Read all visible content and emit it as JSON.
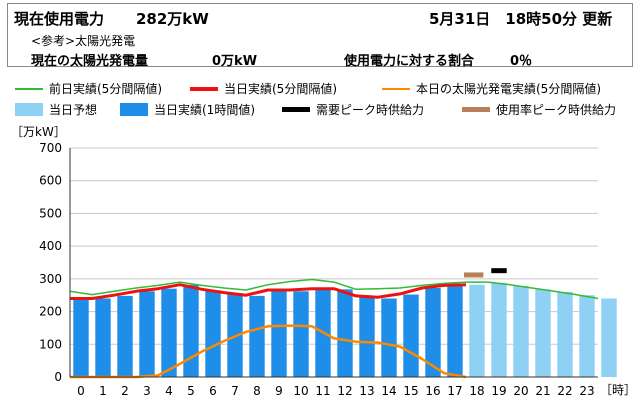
{
  "header": {
    "label_current": "現在使用電力",
    "value_current": "282万kW",
    "updated": "5月31日　18時50分 更新",
    "ref_note": "<参考>太陽光発電",
    "solar_label": "現在の太陽光発電量",
    "solar_value": "0万kW",
    "ratio_label": "使用電力に対する割合",
    "ratio_value": "0％"
  },
  "chart_data": {
    "type": "bar",
    "ylabel": "［万kW］",
    "xlabel": "［時］",
    "ylim": [
      0,
      700
    ],
    "yticks": [
      0,
      100,
      200,
      300,
      400,
      500,
      600,
      700
    ],
    "categories": [
      "0",
      "1",
      "2",
      "3",
      "4",
      "5",
      "6",
      "7",
      "8",
      "9",
      "10",
      "11",
      "12",
      "13",
      "14",
      "15",
      "16",
      "17",
      "18",
      "19",
      "20",
      "21",
      "22",
      "23"
    ],
    "legend": [
      {
        "name": "前日実績(5分間隔値)",
        "kind": "line",
        "color": "#33bb33"
      },
      {
        "name": "当日実績(5分間隔値)",
        "kind": "line",
        "color": "#ee1111"
      },
      {
        "name": "本日の太陽光発電実績(5分間隔値)",
        "kind": "line",
        "color": "#ff8800"
      },
      {
        "name": "当日予想",
        "kind": "box",
        "color": "#8fd0f5"
      },
      {
        "name": "当日実績(1時間値)",
        "kind": "box",
        "color": "#1e8ee8"
      },
      {
        "name": "需要ピーク時供給力",
        "kind": "bar",
        "color": "#000000"
      },
      {
        "name": "使用率ピーク時供給力",
        "kind": "bar",
        "color": "#b8805a"
      }
    ],
    "bars_actual": [
      238,
      240,
      248,
      262,
      270,
      282,
      265,
      256,
      248,
      264,
      262,
      268,
      268,
      244,
      240,
      252,
      272,
      279
    ],
    "bars_forecast_start": 18,
    "bars_forecast": [
      282,
      288,
      278,
      268,
      260,
      250,
      240
    ],
    "line_prevday": [
      262,
      252,
      262,
      272,
      280,
      290,
      280,
      272,
      266,
      282,
      292,
      298,
      290,
      268,
      270,
      272,
      280,
      286,
      290,
      290,
      282,
      272,
      262,
      252,
      240
    ],
    "line_today": [
      240,
      240,
      250,
      262,
      270,
      282,
      268,
      258,
      250,
      266,
      266,
      270,
      270,
      248,
      244,
      254,
      272,
      280,
      282
    ],
    "line_solar": [
      0,
      0,
      0,
      0,
      5,
      40,
      78,
      110,
      138,
      155,
      157,
      155,
      118,
      108,
      105,
      93,
      55,
      12,
      0
    ],
    "supply_demand_peak": {
      "hour": 19,
      "value": 325
    },
    "supply_usage_peak": {
      "hour": 18,
      "value": 312
    }
  }
}
